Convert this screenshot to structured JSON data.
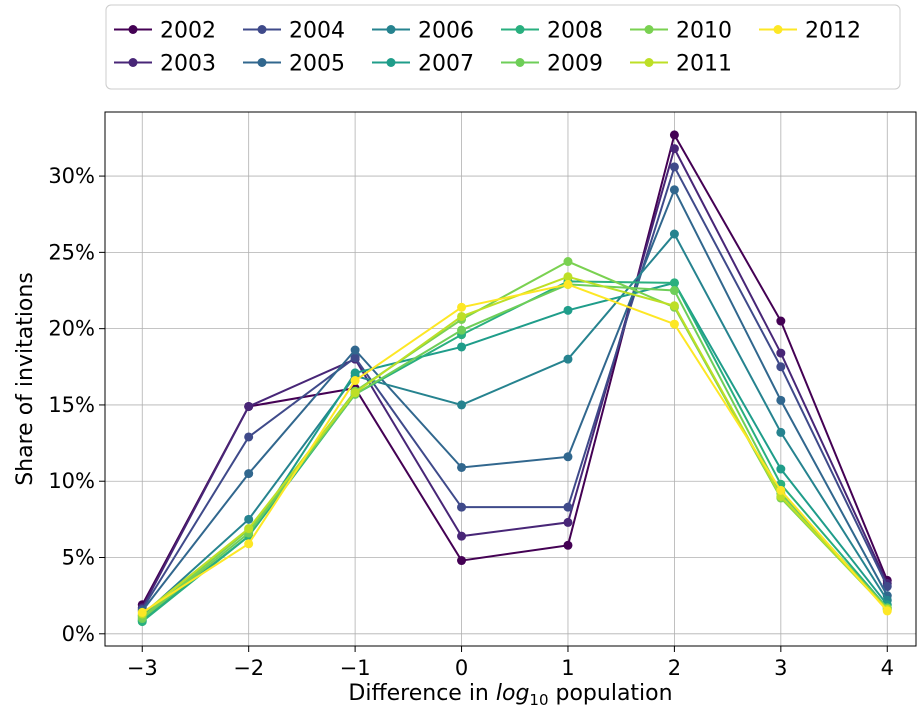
{
  "chart_data": {
    "type": "line",
    "title": "",
    "xlabel_prefix": "Difference in ",
    "xlabel_math_base": "log",
    "xlabel_math_sub": "10",
    "xlabel_suffix": " population",
    "ylabel": "Share of invitations",
    "x": [
      -3,
      -2,
      -1,
      0,
      1,
      2,
      3,
      4
    ],
    "xticks": [
      "−3",
      "−2",
      "−1",
      "0",
      "1",
      "2",
      "3",
      "4"
    ],
    "xlim": [
      -3.35,
      4.27
    ],
    "ylim": [
      -0.8,
      34.2
    ],
    "yticks": [
      0,
      5,
      10,
      15,
      20,
      25,
      30
    ],
    "ytick_labels": [
      "0%",
      "5%",
      "10%",
      "15%",
      "20%",
      "25%",
      "30%"
    ],
    "grid": true,
    "legend": {
      "placement": "top-center",
      "ncol": 6
    },
    "series": [
      {
        "name": "2002",
        "color": "#440154",
        "values": [
          1.9,
          14.9,
          16.1,
          4.8,
          5.8,
          32.7,
          20.5,
          3.5
        ]
      },
      {
        "name": "2003",
        "color": "#482677",
        "values": [
          1.7,
          14.9,
          18.0,
          6.4,
          7.3,
          31.8,
          18.4,
          3.3
        ]
      },
      {
        "name": "2004",
        "color": "#3f4a8a",
        "values": [
          1.6,
          12.9,
          18.1,
          8.3,
          8.3,
          30.6,
          17.5,
          3.1
        ]
      },
      {
        "name": "2005",
        "color": "#31678e",
        "values": [
          1.5,
          10.5,
          18.6,
          10.9,
          11.6,
          29.1,
          15.3,
          2.5
        ]
      },
      {
        "name": "2006",
        "color": "#26838f",
        "values": [
          1.2,
          7.5,
          16.9,
          15.0,
          18.0,
          26.2,
          13.2,
          2.2
        ]
      },
      {
        "name": "2007",
        "color": "#1f9d8a",
        "values": [
          0.9,
          6.4,
          17.1,
          18.8,
          21.2,
          23.0,
          10.8,
          1.9
        ]
      },
      {
        "name": "2008",
        "color": "#29af7f",
        "values": [
          0.8,
          6.4,
          15.7,
          19.6,
          23.1,
          23.0,
          9.8,
          1.7
        ]
      },
      {
        "name": "2009",
        "color": "#6ece58",
        "values": [
          1.0,
          6.6,
          15.7,
          19.9,
          22.9,
          22.5,
          9.2,
          1.7
        ]
      },
      {
        "name": "2010",
        "color": "#7ad151",
        "values": [
          1.1,
          6.8,
          15.9,
          20.6,
          24.4,
          21.4,
          8.9,
          1.6
        ]
      },
      {
        "name": "2011",
        "color": "#bddf26",
        "values": [
          1.3,
          6.9,
          15.8,
          20.8,
          23.4,
          21.5,
          9.0,
          1.6
        ]
      },
      {
        "name": "2012",
        "color": "#fde725",
        "values": [
          1.4,
          5.9,
          16.6,
          21.4,
          22.9,
          20.3,
          9.4,
          1.5
        ]
      }
    ]
  }
}
